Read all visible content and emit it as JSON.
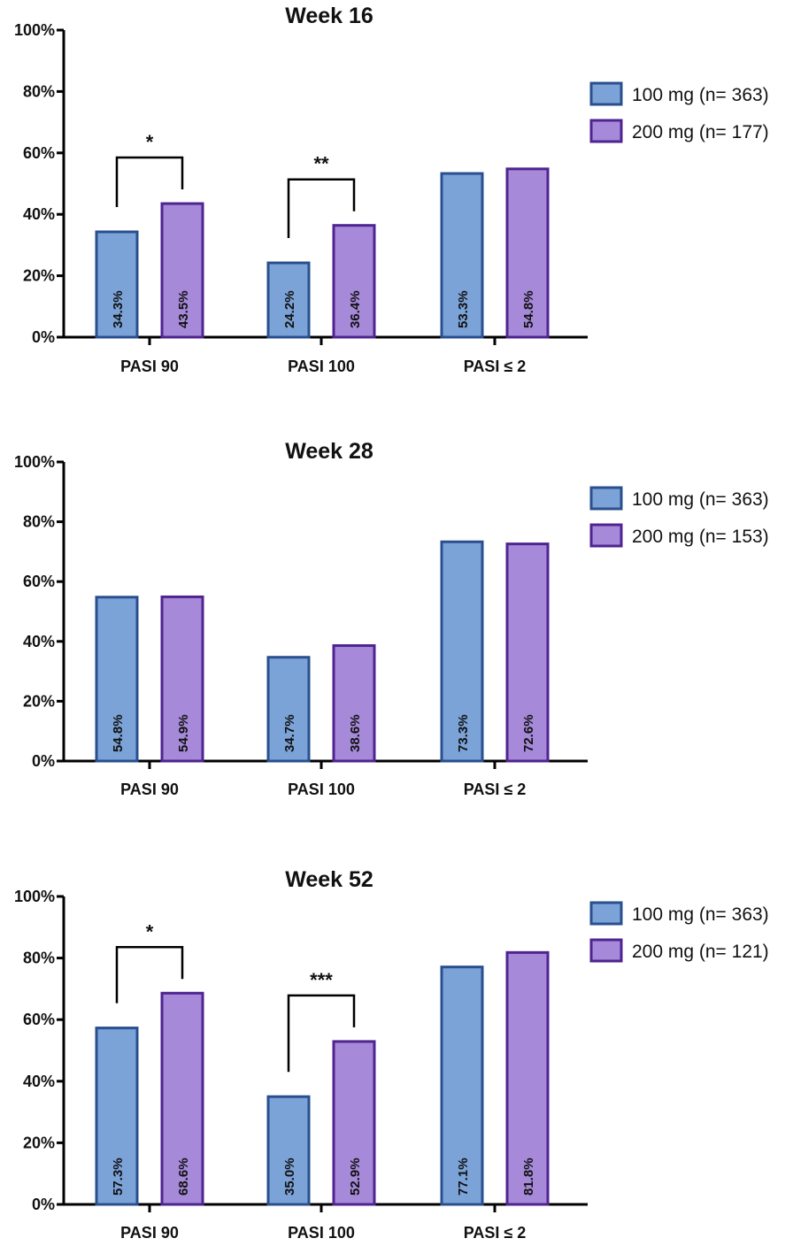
{
  "colors": {
    "s100_fill": "#7ba3d8",
    "s100_stroke": "#2a4f8f",
    "s200_fill": "#a68ad9",
    "s200_stroke": "#4f2490",
    "axis": "#000000"
  },
  "chart_data": [
    {
      "type": "bar",
      "title": "Week 16",
      "categories": [
        "PASI 90",
        "PASI 100",
        "PASI ≤ 2"
      ],
      "series": [
        {
          "name": "100 mg (n= 363)",
          "values": [
            34.3,
            24.2,
            53.3
          ],
          "labels": [
            "34.3%",
            "24.2%",
            "53.3%"
          ]
        },
        {
          "name": "200 mg (n= 177)",
          "values": [
            43.5,
            36.4,
            54.8
          ],
          "labels": [
            "43.5%",
            "36.4%",
            "54.8%"
          ]
        }
      ],
      "ylim": [
        0,
        100
      ],
      "yticks": [
        "0%",
        "20%",
        "40%",
        "60%",
        "80%",
        "100%"
      ],
      "significance": [
        {
          "category": 0,
          "mark": "*"
        },
        {
          "category": 1,
          "mark": "**"
        }
      ],
      "legend": "top-right"
    },
    {
      "type": "bar",
      "title": "Week 28",
      "categories": [
        "PASI 90",
        "PASI 100",
        "PASI ≤ 2"
      ],
      "series": [
        {
          "name": "100 mg (n= 363)",
          "values": [
            54.8,
            34.7,
            73.3
          ],
          "labels": [
            "54.8%",
            "34.7%",
            "73.3%"
          ]
        },
        {
          "name": "200 mg (n= 153)",
          "values": [
            54.9,
            38.6,
            72.6
          ],
          "labels": [
            "54.9%",
            "38.6%",
            "72.6%"
          ]
        }
      ],
      "ylim": [
        0,
        100
      ],
      "yticks": [
        "0%",
        "20%",
        "40%",
        "60%",
        "80%",
        "100%"
      ],
      "significance": [],
      "legend": "top-right"
    },
    {
      "type": "bar",
      "title": "Week 52",
      "categories": [
        "PASI 90",
        "PASI 100",
        "PASI ≤ 2"
      ],
      "series": [
        {
          "name": "100 mg (n= 363)",
          "values": [
            57.3,
            35.0,
            77.1
          ],
          "labels": [
            "57.3%",
            "35.0%",
            "77.1%"
          ]
        },
        {
          "name": "200 mg (n= 121)",
          "values": [
            68.6,
            52.9,
            81.8
          ],
          "labels": [
            "68.6%",
            "52.9%",
            "81.8%"
          ]
        }
      ],
      "ylim": [
        0,
        100
      ],
      "yticks": [
        "0%",
        "20%",
        "40%",
        "60%",
        "80%",
        "100%"
      ],
      "significance": [
        {
          "category": 0,
          "mark": "*"
        },
        {
          "category": 1,
          "mark": "***"
        }
      ],
      "legend": "top-right"
    }
  ]
}
